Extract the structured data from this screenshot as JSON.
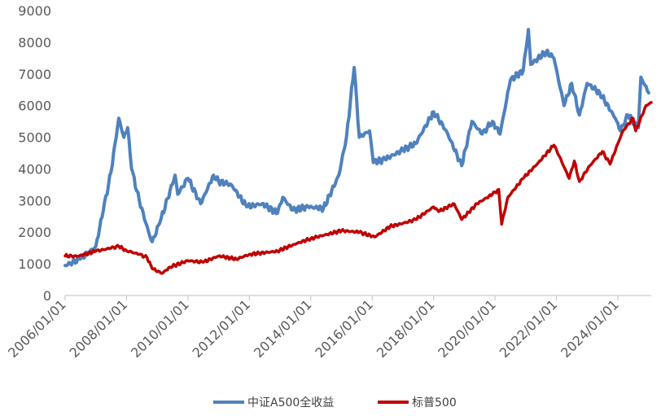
{
  "chart_data": {
    "type": "line",
    "title": "",
    "xlabel": "",
    "ylabel": "",
    "ylim": [
      0,
      9000
    ],
    "grid": false,
    "legend_position": "bottom",
    "y_ticks": [
      0,
      1000,
      2000,
      3000,
      4000,
      5000,
      6000,
      7000,
      8000,
      9000
    ],
    "x_ticks": [
      "2006/01/01",
      "2008/01/01",
      "2010/01/01",
      "2012/01/01",
      "2014/01/01",
      "2016/01/01",
      "2018/01/01",
      "2020/01/01",
      "2022/01/01",
      "2024/01/01"
    ],
    "x_range": [
      "2006/01/01",
      "2025/02/01"
    ],
    "series": [
      {
        "name": "中证A500全收益",
        "color": "#4f81bd",
        "points": [
          [
            "2006/01/01",
            950
          ],
          [
            "2006/07/01",
            1150
          ],
          [
            "2007/01/01",
            1550
          ],
          [
            "2007/04/01",
            2700
          ],
          [
            "2007/07/01",
            3900
          ],
          [
            "2007/10/01",
            5600
          ],
          [
            "2007/12/01",
            5000
          ],
          [
            "2008/01/15",
            5300
          ],
          [
            "2008/03/01",
            4000
          ],
          [
            "2008/06/01",
            3000
          ],
          [
            "2008/10/01",
            1900
          ],
          [
            "2008/11/01",
            1700
          ],
          [
            "2009/02/01",
            2300
          ],
          [
            "2009/08/01",
            3800
          ],
          [
            "2009/09/01",
            3200
          ],
          [
            "2010/01/01",
            3700
          ],
          [
            "2010/06/01",
            2900
          ],
          [
            "2010/11/01",
            3800
          ],
          [
            "2011/01/01",
            3600
          ],
          [
            "2011/06/01",
            3500
          ],
          [
            "2011/12/01",
            2800
          ],
          [
            "2012/06/01",
            2900
          ],
          [
            "2012/12/01",
            2600
          ],
          [
            "2013/02/01",
            3100
          ],
          [
            "2013/06/01",
            2700
          ],
          [
            "2013/12/01",
            2800
          ],
          [
            "2014/06/01",
            2750
          ],
          [
            "2014/12/01",
            3800
          ],
          [
            "2015/03/01",
            5000
          ],
          [
            "2015/06/01",
            7200
          ],
          [
            "2015/08/01",
            5000
          ],
          [
            "2015/12/01",
            5200
          ],
          [
            "2016/01/15",
            4200
          ],
          [
            "2016/06/01",
            4300
          ],
          [
            "2017/01/01",
            4600
          ],
          [
            "2017/06/01",
            4800
          ],
          [
            "2018/01/01",
            5800
          ],
          [
            "2018/06/01",
            5200
          ],
          [
            "2018/12/01",
            4100
          ],
          [
            "2019/04/01",
            5500
          ],
          [
            "2019/08/01",
            5100
          ],
          [
            "2019/12/01",
            5500
          ],
          [
            "2020/03/01",
            5100
          ],
          [
            "2020/07/01",
            6800
          ],
          [
            "2020/12/01",
            7100
          ],
          [
            "2021/02/01",
            8400
          ],
          [
            "2021/03/01",
            7300
          ],
          [
            "2021/09/01",
            7700
          ],
          [
            "2021/12/01",
            7500
          ],
          [
            "2022/04/01",
            6000
          ],
          [
            "2022/07/01",
            6700
          ],
          [
            "2022/10/01",
            5700
          ],
          [
            "2023/01/01",
            6700
          ],
          [
            "2023/06/01",
            6400
          ],
          [
            "2023/12/01",
            5600
          ],
          [
            "2024/02/01",
            5200
          ],
          [
            "2024/05/01",
            5700
          ],
          [
            "2024/09/01",
            5300
          ],
          [
            "2024/10/01",
            6900
          ],
          [
            "2025/01/01",
            6400
          ]
        ]
      },
      {
        "name": "标普500",
        "color": "#c00000",
        "points": [
          [
            "2006/01/01",
            1250
          ],
          [
            "2006/06/01",
            1240
          ],
          [
            "2007/01/01",
            1400
          ],
          [
            "2007/07/01",
            1500
          ],
          [
            "2007/10/01",
            1550
          ],
          [
            "2008/01/01",
            1420
          ],
          [
            "2008/06/01",
            1300
          ],
          [
            "2008/09/01",
            1200
          ],
          [
            "2008/11/01",
            850
          ],
          [
            "2009/03/01",
            700
          ],
          [
            "2009/06/01",
            900
          ],
          [
            "2010/01/01",
            1100
          ],
          [
            "2010/07/01",
            1050
          ],
          [
            "2011/01/01",
            1250
          ],
          [
            "2011/08/01",
            1150
          ],
          [
            "2012/01/01",
            1300
          ],
          [
            "2012/12/01",
            1400
          ],
          [
            "2013/06/01",
            1600
          ],
          [
            "2014/01/01",
            1800
          ],
          [
            "2014/06/01",
            1900
          ],
          [
            "2015/01/01",
            2050
          ],
          [
            "2015/08/01",
            2000
          ],
          [
            "2016/02/01",
            1850
          ],
          [
            "2016/08/01",
            2180
          ],
          [
            "2017/01/01",
            2280
          ],
          [
            "2017/06/01",
            2400
          ],
          [
            "2018/01/01",
            2800
          ],
          [
            "2018/03/01",
            2650
          ],
          [
            "2018/09/01",
            2900
          ],
          [
            "2018/12/01",
            2400
          ],
          [
            "2019/06/01",
            2900
          ],
          [
            "2019/12/01",
            3200
          ],
          [
            "2020/02/15",
            3350
          ],
          [
            "2020/03/20",
            2250
          ],
          [
            "2020/06/01",
            3100
          ],
          [
            "2020/12/01",
            3700
          ],
          [
            "2021/06/01",
            4200
          ],
          [
            "2021/12/01",
            4750
          ],
          [
            "2022/01/01",
            4600
          ],
          [
            "2022/06/01",
            3700
          ],
          [
            "2022/08/01",
            4250
          ],
          [
            "2022/10/01",
            3600
          ],
          [
            "2023/02/01",
            4100
          ],
          [
            "2023/07/01",
            4550
          ],
          [
            "2023/10/01",
            4150
          ],
          [
            "2024/01/01",
            4800
          ],
          [
            "2024/03/01",
            5200
          ],
          [
            "2024/07/01",
            5600
          ],
          [
            "2024/08/01",
            5200
          ],
          [
            "2024/12/01",
            6000
          ],
          [
            "2025/02/01",
            6100
          ]
        ]
      }
    ]
  }
}
